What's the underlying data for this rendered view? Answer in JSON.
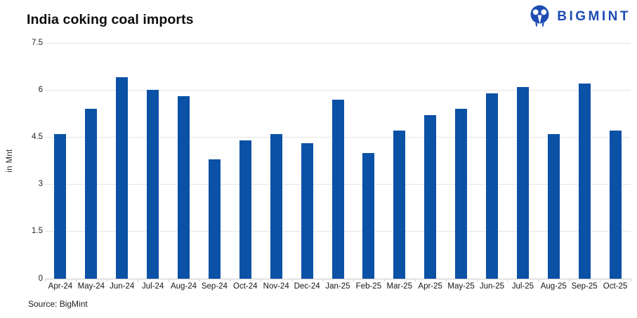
{
  "header": {
    "title": "India coking coal imports",
    "logo_text": "BIGMINT"
  },
  "footer": {
    "source": "Source: BigMint"
  },
  "colors": {
    "bar": "#0b51a6",
    "logo": "#1d4cb3",
    "grid": "#e4e4e4",
    "axis": "#c9c9c9"
  },
  "chart_data": {
    "type": "bar",
    "title": "India coking coal imports",
    "xlabel": "",
    "ylabel": "in Mnt",
    "ylim": [
      0,
      7.5
    ],
    "yticks": [
      0,
      1.5,
      3,
      4.5,
      6,
      7.5
    ],
    "grid": true,
    "legend": false,
    "bar_color": "#0b51a6",
    "categories": [
      "Apr-24",
      "May-24",
      "Jun-24",
      "Jul-24",
      "Aug-24",
      "Sep-24",
      "Oct-24",
      "Nov-24",
      "Dec-24",
      "Jan-25",
      "Feb-25",
      "Mar-25",
      "Apr-25",
      "May-25",
      "Jun-25",
      "Jul-25",
      "Aug-25",
      "Sep-25",
      "Oct-25"
    ],
    "values": [
      4.6,
      5.4,
      6.4,
      6.0,
      5.8,
      3.8,
      4.4,
      4.6,
      4.3,
      5.7,
      4.0,
      4.7,
      5.2,
      5.4,
      5.9,
      6.1,
      4.6,
      6.2,
      4.7
    ]
  }
}
